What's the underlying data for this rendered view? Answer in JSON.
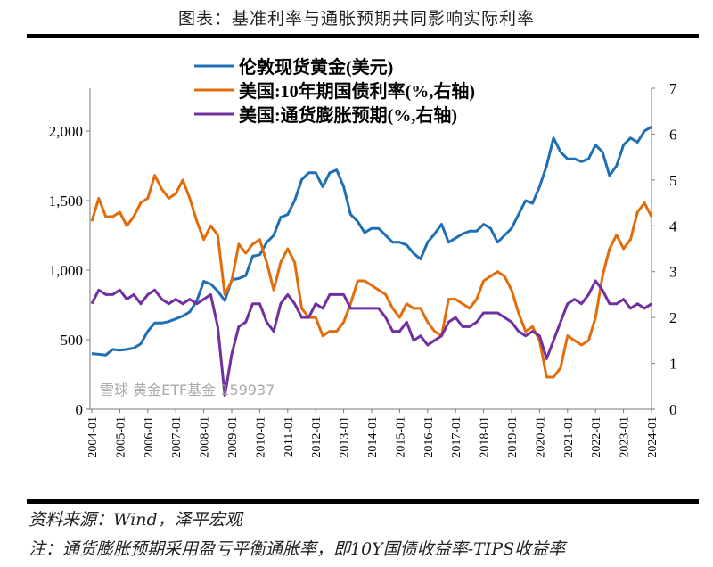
{
  "header": {
    "title": "图表：基准利率与通胀预期共同影响实际利率"
  },
  "footer": {
    "source": "资料来源：Wind，泽平宏观",
    "note": "注：通货膨胀预期采用盈亏平衡通胀率，即10Y国债收益率-TIPS收益率",
    "watermark": "雪球 黄金ETF基金 159937"
  },
  "chart_data": {
    "type": "line",
    "x_ticks": [
      "2004-01",
      "2005-01",
      "2006-01",
      "2007-01",
      "2008-01",
      "2009-01",
      "2010-01",
      "2011-01",
      "2012-01",
      "2013-01",
      "2014-01",
      "2015-01",
      "2016-01",
      "2017-01",
      "2018-01",
      "2019-01",
      "2020-01",
      "2021-01",
      "2022-01",
      "2023-01",
      "2024-01"
    ],
    "y_left": {
      "ticks": [
        "0",
        "500",
        "1,000",
        "1,500",
        "2,000"
      ],
      "range": [
        0,
        2300
      ]
    },
    "y_right": {
      "ticks": [
        "0",
        "1",
        "2",
        "3",
        "4",
        "5",
        "6",
        "7"
      ],
      "range": [
        0,
        7
      ]
    },
    "legend_position": "top",
    "colors": {
      "gold": "#1f6fb5",
      "yield": "#e36c0a",
      "infl": "#7030a0"
    },
    "start": "2004-01",
    "step_months": 3,
    "series": [
      {
        "key": "gold",
        "name": "伦敦现货黄金(美元)",
        "axis": "left",
        "values": [
          400,
          395,
          390,
          430,
          425,
          430,
          440,
          470,
          560,
          620,
          620,
          630,
          650,
          670,
          700,
          780,
          920,
          900,
          850,
          780,
          930,
          940,
          960,
          1100,
          1110,
          1200,
          1250,
          1380,
          1400,
          1500,
          1650,
          1700,
          1700,
          1600,
          1700,
          1720,
          1600,
          1400,
          1350,
          1270,
          1300,
          1300,
          1250,
          1200,
          1200,
          1180,
          1120,
          1080,
          1200,
          1260,
          1330,
          1200,
          1230,
          1260,
          1280,
          1280,
          1330,
          1300,
          1200,
          1250,
          1300,
          1400,
          1500,
          1480,
          1600,
          1750,
          1950,
          1850,
          1800,
          1800,
          1780,
          1800,
          1900,
          1850,
          1680,
          1750,
          1900,
          1950,
          1920,
          2000,
          2030
        ]
      },
      {
        "key": "yield",
        "name": "美国:10年期国债利率(%,右轴)",
        "axis": "right",
        "values": [
          4.1,
          4.6,
          4.2,
          4.2,
          4.3,
          4.0,
          4.2,
          4.5,
          4.6,
          5.1,
          4.8,
          4.6,
          4.7,
          5.0,
          4.6,
          4.1,
          3.7,
          4.0,
          3.8,
          2.5,
          2.8,
          3.6,
          3.4,
          3.6,
          3.7,
          3.2,
          2.6,
          3.2,
          3.5,
          3.2,
          2.2,
          2.0,
          2.0,
          1.6,
          1.7,
          1.7,
          1.9,
          2.3,
          2.8,
          2.8,
          2.7,
          2.6,
          2.5,
          2.2,
          2.0,
          2.3,
          2.2,
          2.2,
          1.9,
          1.7,
          1.6,
          2.4,
          2.4,
          2.3,
          2.2,
          2.4,
          2.8,
          2.9,
          3.0,
          2.9,
          2.6,
          2.1,
          1.7,
          1.8,
          1.5,
          0.7,
          0.7,
          0.9,
          1.6,
          1.5,
          1.4,
          1.5,
          2.0,
          2.9,
          3.5,
          3.8,
          3.5,
          3.7,
          4.3,
          4.5,
          4.2
        ]
      },
      {
        "key": "infl",
        "name": "美国:通货膨胀预期(%,右轴)",
        "axis": "right",
        "values": [
          2.3,
          2.6,
          2.5,
          2.5,
          2.6,
          2.4,
          2.5,
          2.3,
          2.5,
          2.6,
          2.4,
          2.3,
          2.4,
          2.3,
          2.4,
          2.3,
          2.4,
          2.5,
          1.8,
          0.3,
          1.2,
          1.8,
          1.9,
          2.3,
          2.3,
          1.9,
          1.7,
          2.3,
          2.5,
          2.3,
          2.0,
          2.0,
          2.3,
          2.2,
          2.5,
          2.5,
          2.5,
          2.2,
          2.2,
          2.2,
          2.2,
          2.2,
          2.0,
          1.7,
          1.7,
          1.9,
          1.5,
          1.6,
          1.4,
          1.5,
          1.6,
          1.9,
          2.0,
          1.8,
          1.8,
          1.9,
          2.1,
          2.1,
          2.1,
          2.0,
          1.9,
          1.7,
          1.6,
          1.7,
          1.6,
          1.1,
          1.5,
          1.9,
          2.3,
          2.4,
          2.3,
          2.5,
          2.8,
          2.6,
          2.3,
          2.3,
          2.4,
          2.2,
          2.3,
          2.2,
          2.3
        ]
      }
    ]
  }
}
